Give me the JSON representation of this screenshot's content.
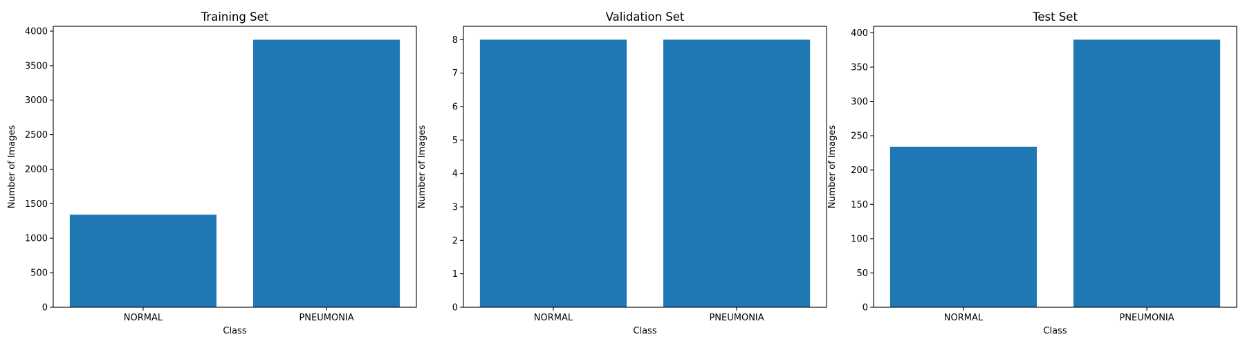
{
  "colors": {
    "bar": "#1f77b4"
  },
  "chart_data": [
    {
      "type": "bar",
      "title": "Training Set",
      "xlabel": "Class",
      "ylabel": "Number of Images",
      "categories": [
        "NORMAL",
        "PNEUMONIA"
      ],
      "values": [
        1341,
        3875
      ],
      "ylim": [
        0,
        4070
      ],
      "yticks": [
        0,
        500,
        1000,
        1500,
        2000,
        2500,
        3000,
        3500,
        4000
      ],
      "grid": false
    },
    {
      "type": "bar",
      "title": "Validation Set",
      "xlabel": "Class",
      "ylabel": "Number of Images",
      "categories": [
        "NORMAL",
        "PNEUMONIA"
      ],
      "values": [
        8,
        8
      ],
      "ylim": [
        0,
        8.4
      ],
      "yticks": [
        0,
        1,
        2,
        3,
        4,
        5,
        6,
        7,
        8
      ],
      "grid": false
    },
    {
      "type": "bar",
      "title": "Test Set",
      "xlabel": "Class",
      "ylabel": "Number of Images",
      "categories": [
        "NORMAL",
        "PNEUMONIA"
      ],
      "values": [
        234,
        390
      ],
      "ylim": [
        0,
        409.5
      ],
      "yticks": [
        0,
        50,
        100,
        150,
        200,
        250,
        300,
        350,
        400
      ],
      "grid": false
    }
  ]
}
